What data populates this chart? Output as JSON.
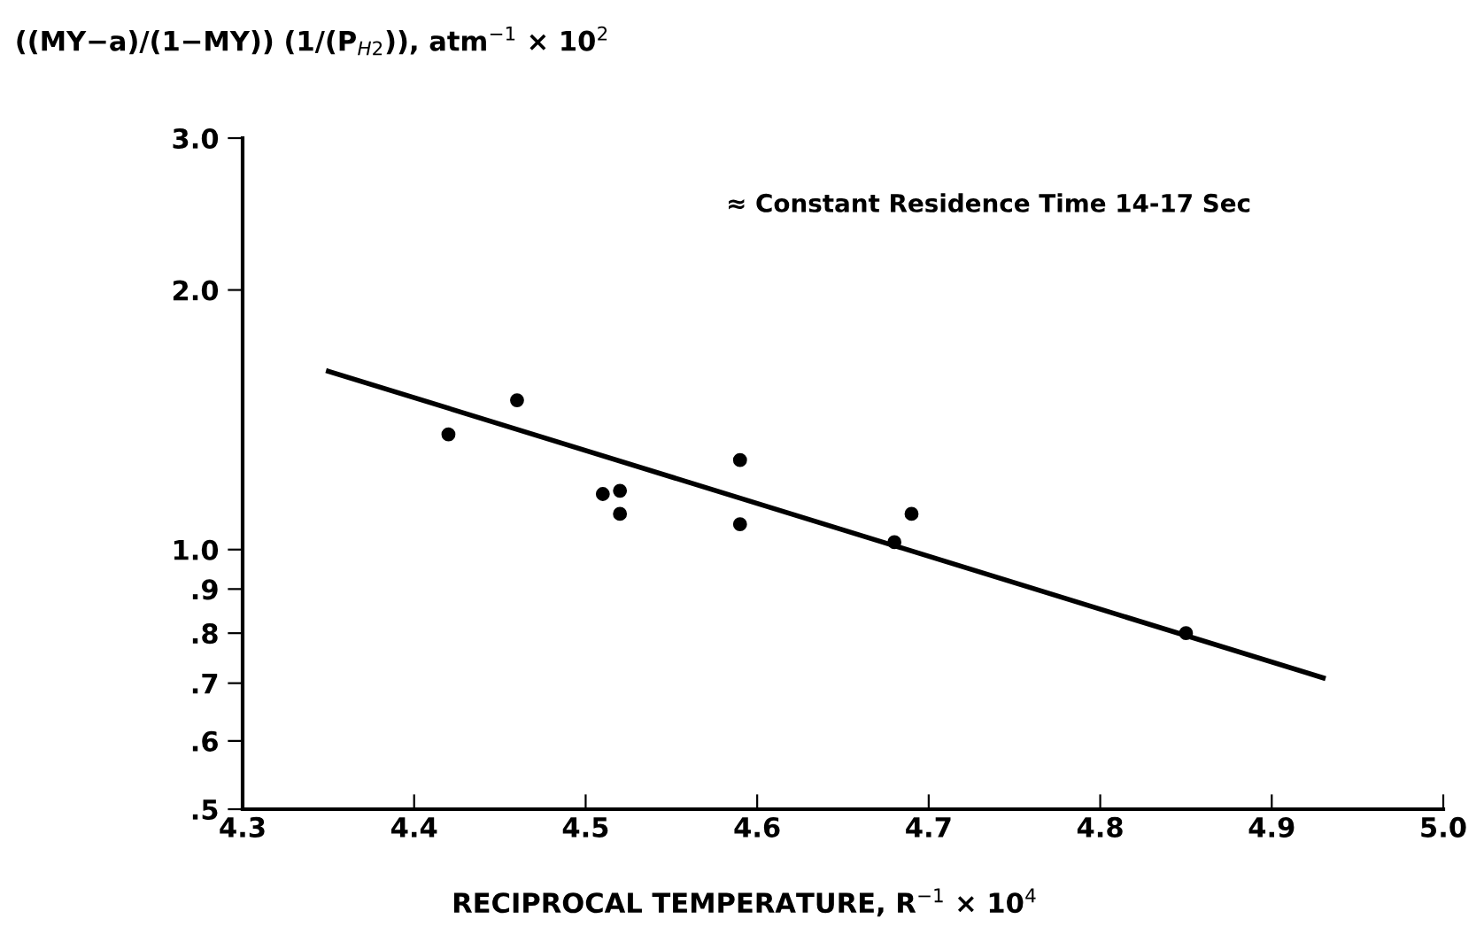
{
  "chart_data": {
    "type": "scatter",
    "ylabel": "((MY−a)/(1−MY)) (1/(P$_{H2}$)), atm$^{−1}$ × 10$^{2}$",
    "xlabel": "RECIPROCAL TEMPERATURE, R$^{−1}$ × 10$^{4}$",
    "annotations": [
      "≈ Constant Residence Time 14-17 Sec"
    ],
    "series": [
      {
        "color": "#000000",
        "marker": "circle",
        "x": [
          4.42,
          4.46,
          4.51,
          4.52,
          4.52,
          4.59,
          4.59,
          4.68,
          4.69,
          4.85
        ],
        "values": [
          1.36,
          1.49,
          1.16,
          1.17,
          1.1,
          1.27,
          1.07,
          1.02,
          1.1,
          0.8
        ]
      },
      {
        "type": "line",
        "color": "#000000",
        "x": [
          4.35,
          4.93
        ],
        "values": [
          1.61,
          0.71
        ]
      }
    ],
    "log": "y",
    "xlim": [
      4.3,
      5.0
    ],
    "xticks": [
      {
        "value": 4.3,
        "label": "4.3"
      },
      {
        "value": 4.4,
        "label": "4.4"
      },
      {
        "value": 4.5,
        "label": "4.5"
      },
      {
        "value": 4.6,
        "label": "4.6"
      },
      {
        "value": 4.7,
        "label": "4.7"
      },
      {
        "value": 4.8,
        "label": "4.8"
      },
      {
        "value": 4.9,
        "label": "4.9"
      },
      {
        "value": 5.0,
        "label": "5.0"
      }
    ],
    "ylim": [
      0.5,
      3.0
    ],
    "yticks": [
      {
        "value": 0.5,
        "label": ".5"
      },
      {
        "value": 0.6,
        "label": ".6"
      },
      {
        "value": 0.7,
        "label": ".7"
      },
      {
        "value": 0.8,
        "label": ".8"
      },
      {
        "value": 0.9,
        "label": ".9"
      },
      {
        "value": 1.0,
        "label": "1.0"
      },
      {
        "value": 2.0,
        "label": "2.0"
      },
      {
        "value": 3.0,
        "label": "3.0"
      }
    ],
    "grid": false
  }
}
